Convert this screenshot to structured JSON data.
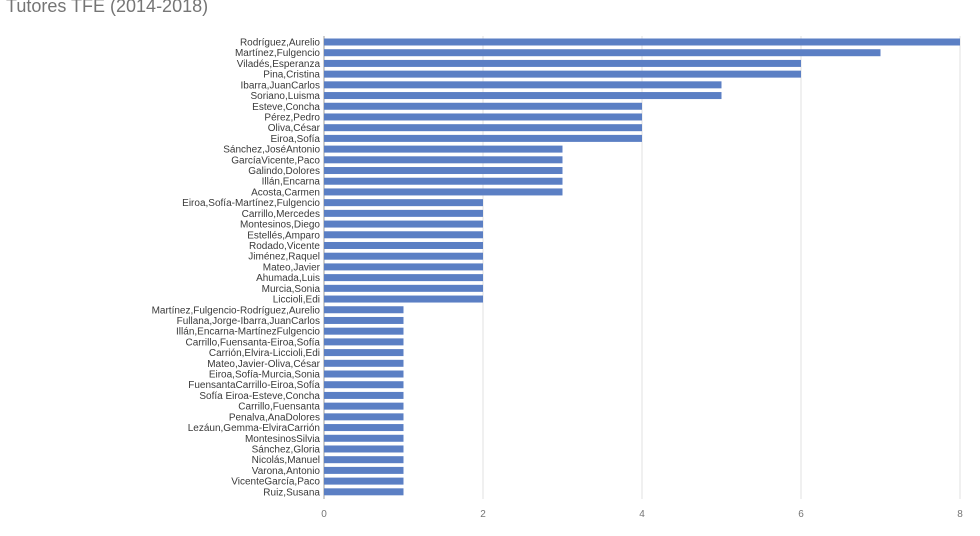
{
  "chart_data": {
    "type": "bar",
    "orientation": "horizontal",
    "title": "Tutores TFE (2014-2018)",
    "categories": [
      "Rodríguez,Aurelio",
      "Martínez,Fulgencio",
      "Viladés,Esperanza",
      "Pina,Cristina",
      "Ibarra,JuanCarlos",
      "Soriano,Luisma",
      "Esteve,Concha",
      "Pérez,Pedro",
      "Oliva,César",
      "Eiroa,Sofía",
      "Sánchez,JoséAntonio",
      "GarcíaVicente,Paco",
      "Galindo,Dolores",
      "Illán,Encarna",
      "Acosta,Carmen",
      "Eiroa,Sofía-Martínez,Fulgencio",
      "Carrillo,Mercedes",
      "Montesinos,Diego",
      "Estellés,Amparo",
      "Rodado,Vicente",
      "Jiménez,Raquel",
      "Mateo,Javier",
      "Ahumada,Luis",
      "Murcia,Sonia",
      "Liccioli,Edi",
      "Martínez,Fulgencio-Rodríguez,Aurelio",
      "Fullana,Jorge-Ibarra,JuanCarlos",
      "Illán,Encarna-MartínezFulgencio",
      "Carrillo,Fuensanta-Eiroa,Sofía",
      "Carrión,Elvira-Liccioli,Edi",
      "Mateo,Javier-Oliva,César",
      "Eiroa,Sofía-Murcia,Sonia",
      "FuensantaCarrillo-Eiroa,Sofía",
      "Sofía Eiroa-Esteve,Concha",
      "Carrillo,Fuensanta",
      "Penalva,AnaDolores",
      "Lezáun,Gemma-ElviraCarrión",
      "MontesinosSilvia",
      "Sánchez,Gloria",
      "Nicolás,Manuel",
      "Varona,Antonio",
      "VicenteGarcía,Paco",
      "Ruiz,Susana"
    ],
    "values": [
      8,
      7,
      6,
      6,
      5,
      5,
      4,
      4,
      4,
      4,
      3,
      3,
      3,
      3,
      3,
      2,
      2,
      2,
      2,
      2,
      2,
      2,
      2,
      2,
      2,
      1,
      1,
      1,
      1,
      1,
      1,
      1,
      1,
      1,
      1,
      1,
      1,
      1,
      1,
      1,
      1,
      1,
      1
    ],
    "xlim": [
      0,
      8
    ],
    "xticks": [
      0,
      2,
      4,
      6,
      8
    ],
    "xlabel": "",
    "ylabel": "",
    "grid": true,
    "legend": "none",
    "bar_color": "#5b7fc4"
  }
}
